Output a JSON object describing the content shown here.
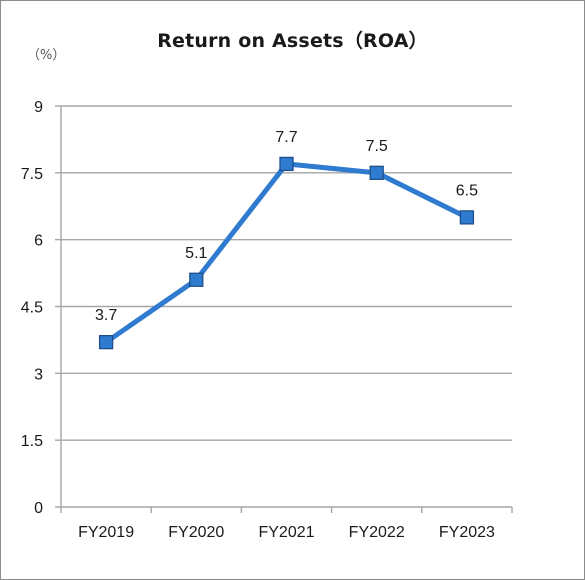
{
  "chart_data": {
    "type": "line",
    "title": "Return on Assets（ROA）",
    "unit_label": "（%）",
    "categories": [
      "FY2019",
      "FY2020",
      "FY2021",
      "FY2022",
      "FY2023"
    ],
    "series": [
      {
        "values": [
          3.7,
          5.1,
          7.7,
          7.5,
          6.5
        ],
        "data_labels": [
          "3.7",
          "5.1",
          "7.7",
          "7.5",
          "6.5"
        ]
      }
    ],
    "yticks": [
      0,
      1.5,
      3,
      4.5,
      6,
      7.5,
      9
    ],
    "ytick_labels": [
      "0",
      "1.5",
      "3",
      "4.5",
      "6",
      "7.5",
      "9"
    ],
    "ylim": [
      0,
      9
    ],
    "grid": true,
    "legend": "none",
    "marker": "square",
    "colors": {
      "line": "#2f7bd0",
      "marker_fill": "#2f7bd0",
      "marker_edge": "#1f4f8a",
      "grid": "#a6a6a6",
      "axis": "#a6a6a6"
    }
  }
}
